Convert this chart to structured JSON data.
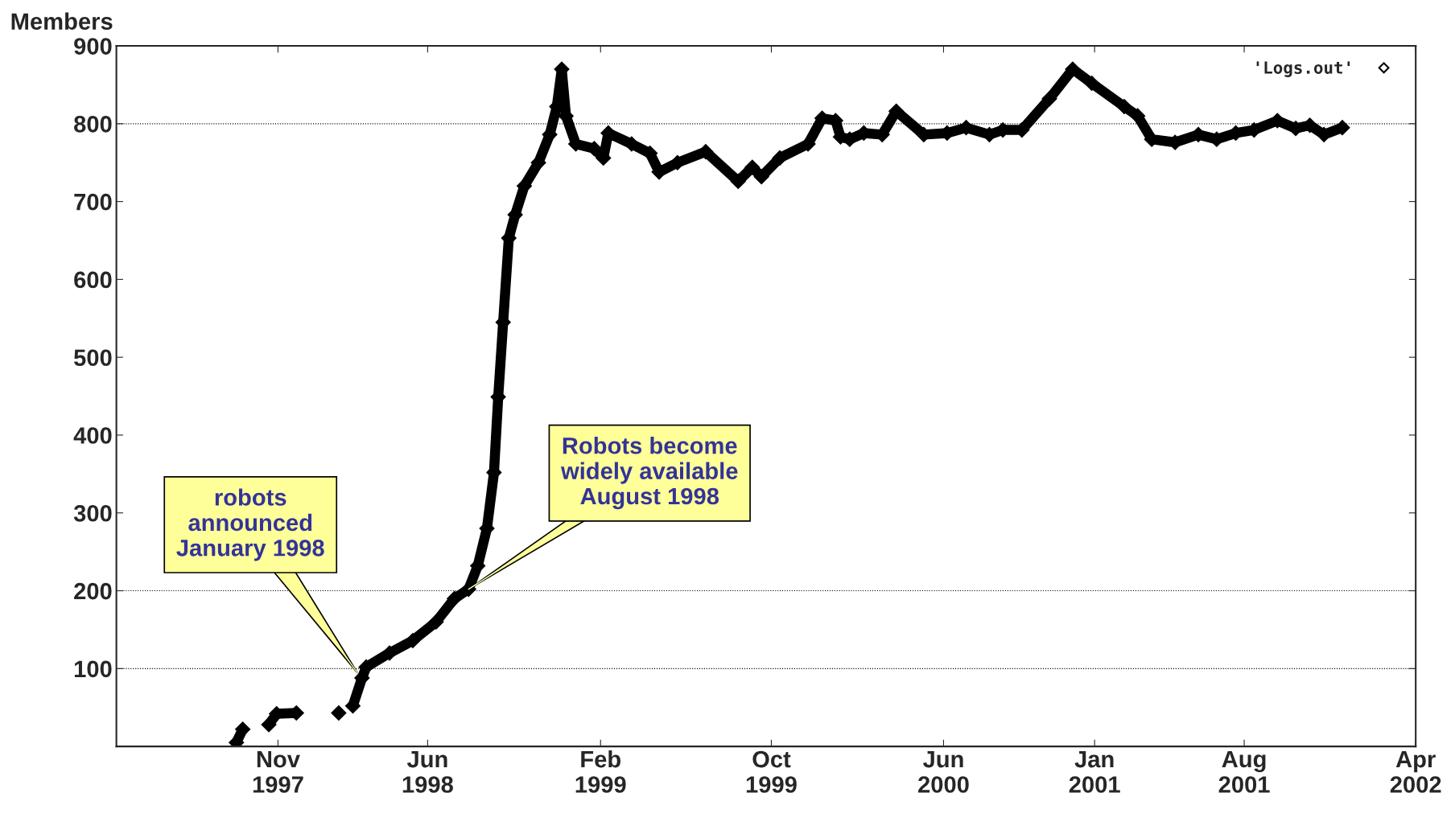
{
  "chart_data": {
    "type": "line",
    "ylabel": "Members",
    "x": [
      "1997-09-03",
      "1997-09-12",
      "1997-10-01",
      "1997-10-19",
      "1997-10-30",
      "1997-11-27",
      "1998-01-10",
      "1998-01-26",
      "1998-02-05",
      "1998-02-15",
      "1998-02-28",
      "1998-03-06",
      "1998-04-08",
      "1998-05-11",
      "1998-06-13",
      "1998-07-09",
      "1998-07-29",
      "1998-08-11",
      "1998-08-24",
      "1998-09-03",
      "1998-09-09",
      "1998-09-16",
      "1998-09-24",
      "1998-10-03",
      "1998-10-16",
      "1998-11-05",
      "1998-11-21",
      "1998-12-01",
      "1998-12-08",
      "1998-12-14",
      "1998-12-28",
      "1999-01-23",
      "1999-02-05",
      "1999-02-12",
      "1999-03-17",
      "1999-04-12",
      "1999-04-25",
      "1999-05-21",
      "1999-06-30",
      "1999-08-15",
      "1999-09-04",
      "1999-09-17",
      "1999-10-13",
      "1999-11-22",
      "1999-12-12",
      "1999-12-31",
      "2000-01-07",
      "2000-01-20",
      "2000-02-09",
      "2000-03-06",
      "2000-03-26",
      "2000-05-04",
      "2000-06-06",
      "2000-07-03",
      "2000-08-05",
      "2000-08-24",
      "2000-09-20",
      "2000-10-29",
      "2000-12-01",
      "2000-12-28",
      "2001-02-12",
      "2001-03-03",
      "2001-03-23",
      "2001-04-25",
      "2001-05-28",
      "2001-06-23",
      "2001-07-20",
      "2001-08-15",
      "2001-09-17",
      "2001-10-13",
      "2001-11-02",
      "2001-11-22",
      "2001-12-18"
    ],
    "series": [
      {
        "name": "'Logs.out'",
        "color": "#000000",
        "values": [
          5,
          22,
          null,
          28,
          42,
          43,
          null,
          43,
          null,
          52,
          88,
          102,
          120,
          136,
          160,
          190,
          202,
          232,
          280,
          352,
          449,
          545,
          653,
          683,
          720,
          750,
          786,
          822,
          870,
          810,
          774,
          768,
          756,
          788,
          774,
          762,
          738,
          750,
          764,
          726,
          744,
          732,
          756,
          774,
          807,
          804,
          783,
          780,
          788,
          786,
          816,
          786,
          788,
          795,
          786,
          792,
          792,
          832,
          870,
          852,
          822,
          810,
          780,
          776,
          786,
          780,
          788,
          792,
          804,
          794,
          798,
          786,
          795
        ]
      }
    ],
    "xlim": [
      "1997-03-17",
      "2002-04-01"
    ],
    "xticks": [
      {
        "value": "1997-11-01",
        "label": "Nov\n1997"
      },
      {
        "value": "1998-06-01",
        "label": "Jun\n1998"
      },
      {
        "value": "1999-02-01",
        "label": "Feb\n1999"
      },
      {
        "value": "1999-10-01",
        "label": "Oct\n1999"
      },
      {
        "value": "2000-06-01",
        "label": "Jun\n2000"
      },
      {
        "value": "2001-01-01",
        "label": "Jan\n2001"
      },
      {
        "value": "2001-08-01",
        "label": "Aug\n2001"
      },
      {
        "value": "2002-04-01",
        "label": "Apr\n2002"
      }
    ],
    "ylim": [
      0,
      900
    ],
    "yticks": [
      100,
      200,
      300,
      400,
      500,
      600,
      700,
      800,
      900
    ],
    "ref_lines": [
      {
        "axis": "y",
        "value": 100,
        "line_style": "dotted"
      },
      {
        "axis": "y",
        "value": 200,
        "line_style": "dotted"
      },
      {
        "axis": "y",
        "value": 800,
        "line_style": "dotted"
      }
    ],
    "annotations": [
      {
        "text": "robots\nannounced\nJanuary 1998",
        "x": "1998-02-22",
        "y": 94
      },
      {
        "text": "Robots become\nwidely available\nAugust 1998",
        "x": "1998-07-29",
        "y": 202
      }
    ],
    "marker": "diamond",
    "legend": "top right",
    "grid": false
  }
}
